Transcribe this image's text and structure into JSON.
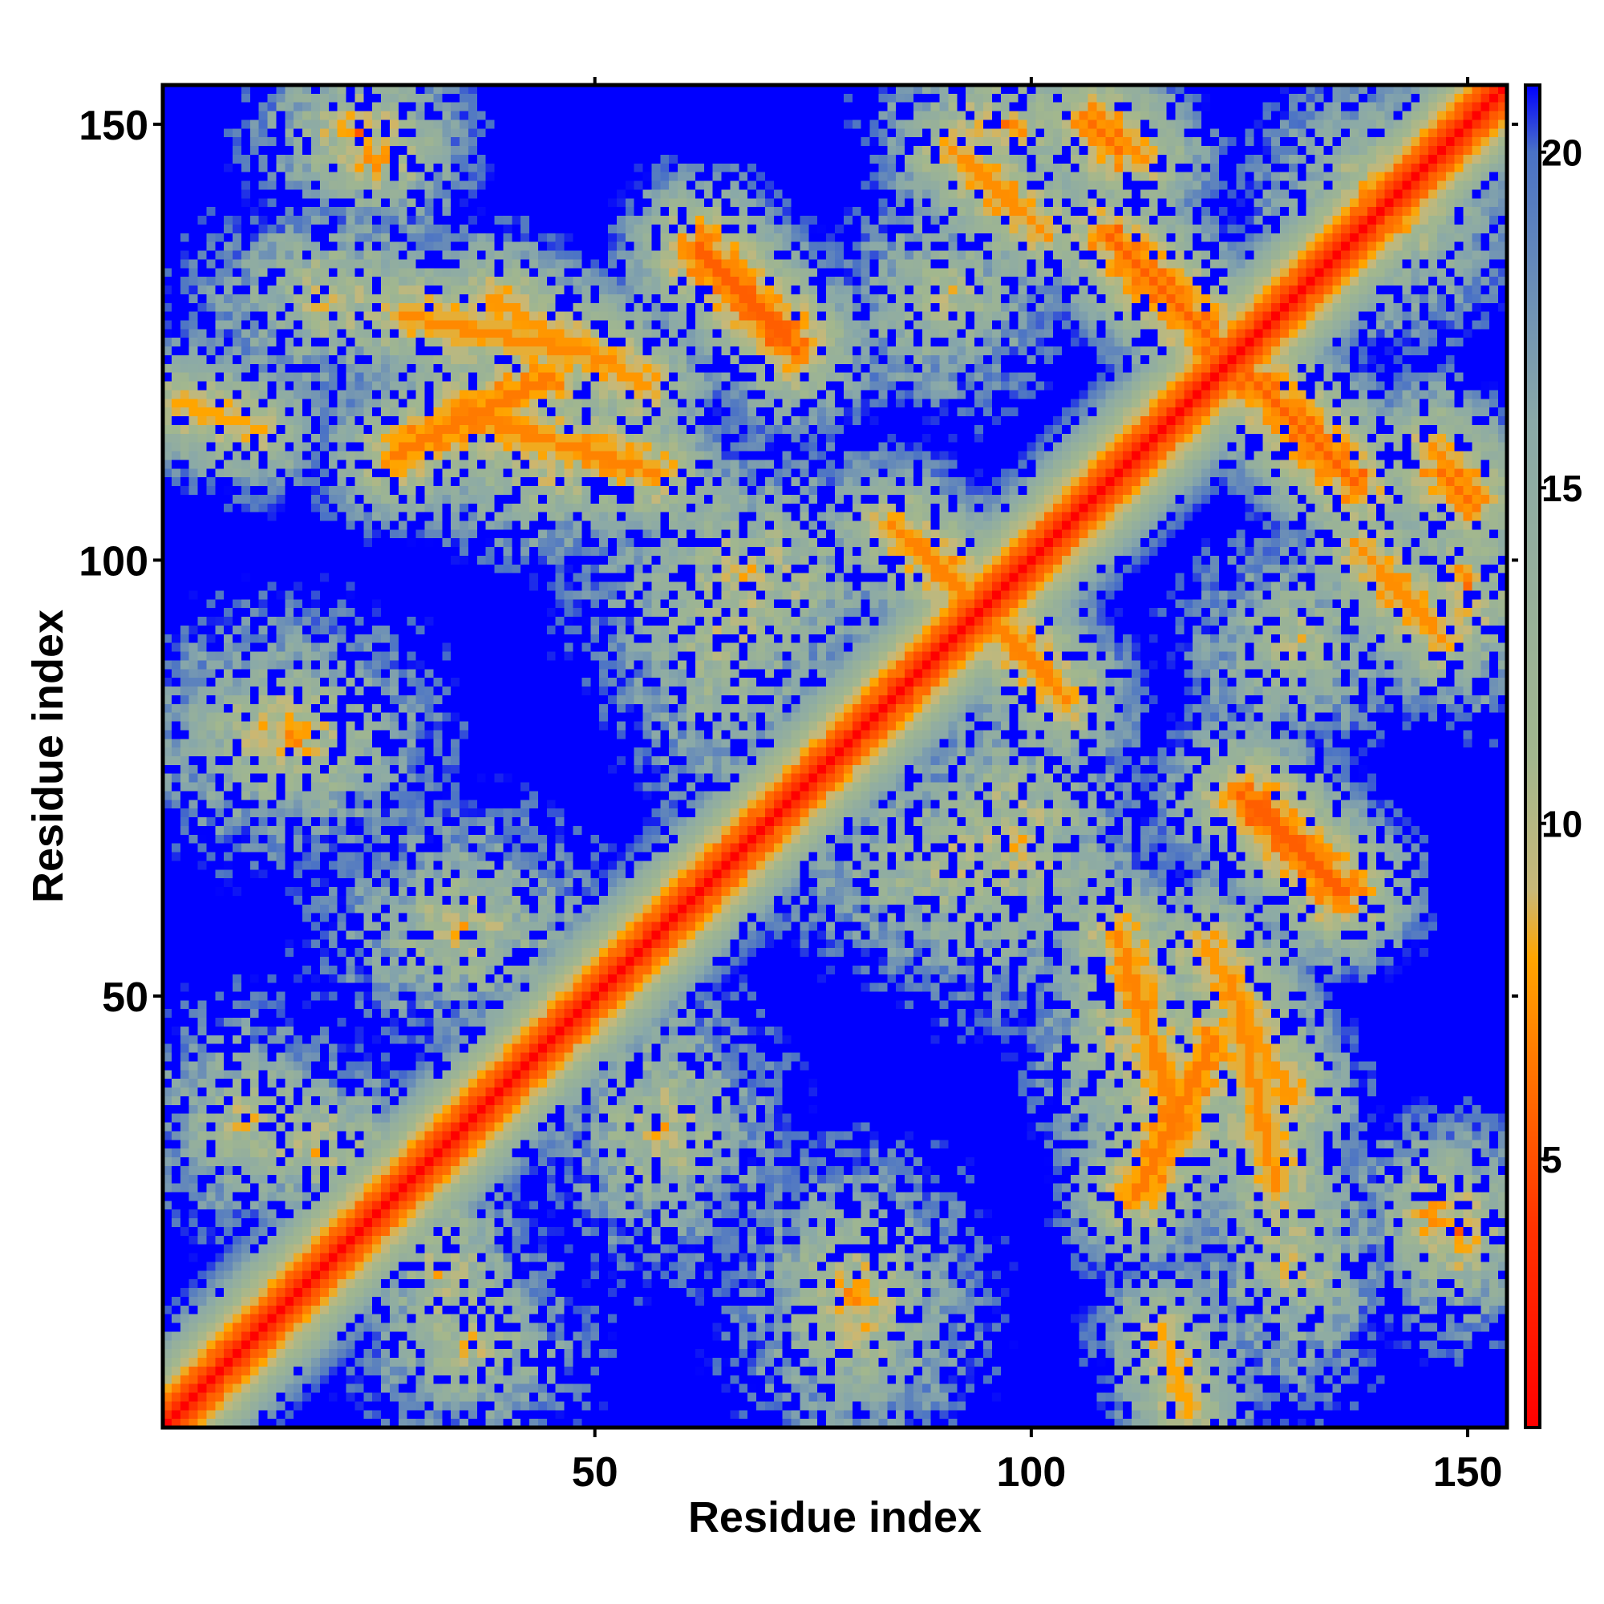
{
  "chart_data": {
    "type": "heatmap",
    "title": "",
    "xlabel": "Residue index",
    "ylabel": "Residue index",
    "n_residues": 154,
    "xlim": [
      1,
      154
    ],
    "ylim": [
      1,
      154
    ],
    "x_ticks": [
      50,
      100,
      150
    ],
    "y_ticks": [
      50,
      100,
      150
    ],
    "colorbar": {
      "ticks": [
        5,
        10,
        15,
        20
      ],
      "range": [
        1,
        21
      ],
      "clip_value": 21,
      "stops": [
        {
          "value": 1,
          "color": "#ff0000"
        },
        {
          "value": 4,
          "color": "#ff3300"
        },
        {
          "value": 8,
          "color": "#ffa500"
        },
        {
          "value": 9,
          "color": "#c8b878"
        },
        {
          "value": 11,
          "color": "#a2b78e"
        },
        {
          "value": 16,
          "color": "#8aa9a8"
        },
        {
          "value": 20,
          "color": "#4a72c6"
        },
        {
          "value": 21,
          "color": "#0000ff"
        }
      ]
    },
    "grid": false,
    "legend": "colorbar-right",
    "diagonal_profile": [
      {
        "offset": 0,
        "distance": 1.0
      },
      {
        "offset": 1,
        "distance": 3.8
      },
      {
        "offset": 2,
        "distance": 5.5
      },
      {
        "offset": 3,
        "distance": 6.5
      },
      {
        "offset": 4,
        "distance": 8.5
      },
      {
        "offset": 6,
        "distance": 11.0
      },
      {
        "offset": 10,
        "distance": 17.0
      }
    ],
    "contact_bands": [
      {
        "x1": 62,
        "y1": 135,
        "x2": 73,
        "y2": 124,
        "distance": 5.5
      },
      {
        "x1": 112,
        "y1": 134,
        "x2": 122,
        "y2": 124,
        "distance": 5.5
      },
      {
        "x1": 124,
        "y1": 122,
        "x2": 137,
        "y2": 109,
        "distance": 5.5
      },
      {
        "x1": 126,
        "y1": 72,
        "x2": 136,
        "y2": 62,
        "distance": 5.5
      },
      {
        "x1": 27,
        "y1": 112,
        "x2": 45,
        "y2": 121,
        "distance": 6.5
      },
      {
        "x1": 28,
        "y1": 128,
        "x2": 52,
        "y2": 123,
        "distance": 7.0
      },
      {
        "x1": 2,
        "y1": 118,
        "x2": 12,
        "y2": 115,
        "distance": 8.0
      },
      {
        "x1": 110,
        "y1": 57,
        "x2": 117,
        "y2": 34,
        "distance": 6.8
      },
      {
        "x1": 120,
        "y1": 56,
        "x2": 130,
        "y2": 38,
        "distance": 7.5
      },
      {
        "x1": 84,
        "y1": 104,
        "x2": 100,
        "y2": 89,
        "distance": 6.8
      },
      {
        "x1": 107,
        "y1": 150,
        "x2": 110,
        "y2": 147,
        "distance": 6.0
      },
      {
        "x1": 138,
        "y1": 101,
        "x2": 147,
        "y2": 91,
        "distance": 7.2
      },
      {
        "x1": 146,
        "y1": 113,
        "x2": 150,
        "y2": 109,
        "distance": 7.2
      }
    ],
    "contact_patches": [
      {
        "x": 23,
        "y": 149,
        "rx": 8,
        "ry": 6,
        "distance": 7.5
      },
      {
        "x": 15,
        "y": 80,
        "rx": 10,
        "ry": 7,
        "distance": 8.5
      },
      {
        "x": 10,
        "y": 36,
        "rx": 10,
        "ry": 10,
        "distance": 10.0
      },
      {
        "x": 35,
        "y": 58,
        "rx": 12,
        "ry": 10,
        "distance": 9.5
      },
      {
        "x": 33,
        "y": 18,
        "rx": 7,
        "ry": 11,
        "distance": 9.0
      },
      {
        "x": 80,
        "y": 15,
        "rx": 10,
        "ry": 12,
        "distance": 8.5
      },
      {
        "x": 97,
        "y": 150,
        "rx": 10,
        "ry": 6,
        "distance": 8.0
      },
      {
        "x": 65,
        "y": 92,
        "rx": 10,
        "ry": 16,
        "distance": 9.5
      },
      {
        "x": 98,
        "y": 68,
        "rx": 12,
        "ry": 15,
        "distance": 9.5
      },
      {
        "x": 140,
        "y": 141,
        "rx": 10,
        "ry": 9,
        "distance": 8.0
      },
      {
        "x": 147,
        "y": 25,
        "rx": 7,
        "ry": 7,
        "distance": 7.5
      },
      {
        "x": 130,
        "y": 20,
        "rx": 9,
        "ry": 12,
        "distance": 9.5
      },
      {
        "x": 45,
        "y": 110,
        "rx": 14,
        "ry": 8,
        "distance": 10.0
      },
      {
        "x": 90,
        "y": 130,
        "rx": 10,
        "ry": 10,
        "distance": 10.0
      }
    ]
  }
}
